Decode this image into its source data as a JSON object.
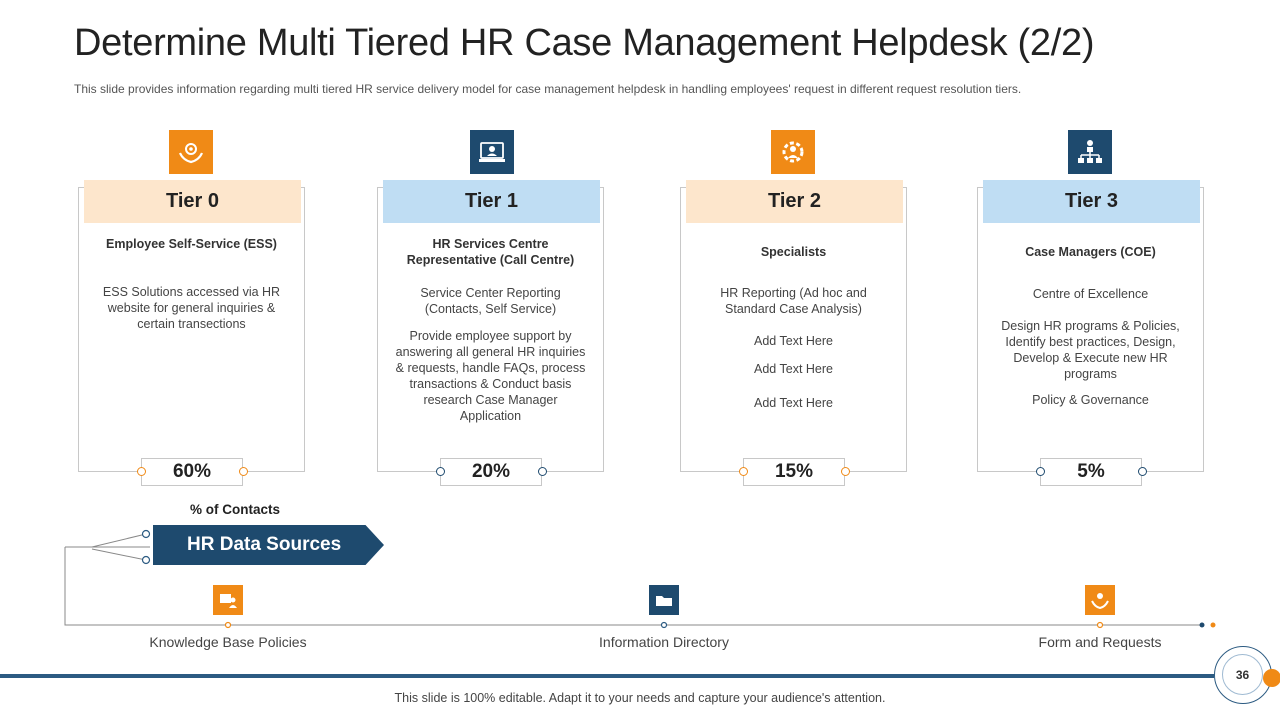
{
  "title": "Determine Multi Tiered HR Case Management Helpdesk (2/2)",
  "subtitle": "This slide provides  information  regarding  multi tiered HR  service  delivery  model for  case management  helpdesk  in handling  employees'  request  in different  request  resolution  tiers.",
  "colors": {
    "orange": "#f08a16",
    "navy": "#1e4a6e",
    "band_orange": "#fde6cc",
    "band_blue": "#bfddf3"
  },
  "tiers": [
    {
      "label": "Tier 0",
      "icon": "hands-gear-icon",
      "heading": "Employee Self-Service (ESS)",
      "paragraphs": [
        "ESS Solutions accessed via HR website for general inquiries & certain transections"
      ],
      "percent": "60%"
    },
    {
      "label": "Tier 1",
      "icon": "support-agent-icon",
      "heading": "HR Services Centre Representative (Call Centre)",
      "paragraphs": [
        "Service Center Reporting (Contacts, Self Service)",
        "Provide employee support by answering all general HR inquiries & requests, handle FAQs, process transactions & Conduct basis research Case Manager Application"
      ],
      "percent": "20%"
    },
    {
      "label": "Tier 2",
      "icon": "gear-person-icon",
      "heading": "Specialists",
      "paragraphs": [
        "HR Reporting (Ad hoc and Standard Case Analysis)",
        "Add Text Here",
        "Add Text Here",
        "Add Text Here"
      ],
      "percent": "15%"
    },
    {
      "label": "Tier 3",
      "icon": "org-chart-icon",
      "heading": "Case Managers (COE)",
      "paragraphs": [
        "Centre of Excellence",
        "Design HR programs & Policies, Identify best practices, Design, Develop  & Execute new HR programs",
        "Policy & Governance"
      ],
      "percent": "5%"
    }
  ],
  "contacts_label": "% of Contacts",
  "hr_data_sources": "HR Data Sources",
  "sources": [
    {
      "label": "Knowledge Base Policies",
      "icon": "folder-person-icon"
    },
    {
      "label": "Information Directory",
      "icon": "directory-folder-icon"
    },
    {
      "label": "Form and Requests",
      "icon": "hand-person-icon"
    }
  ],
  "footer": "This slide is 100% editable. Adapt it to your needs and capture your audience's attention.",
  "page_number": "36"
}
